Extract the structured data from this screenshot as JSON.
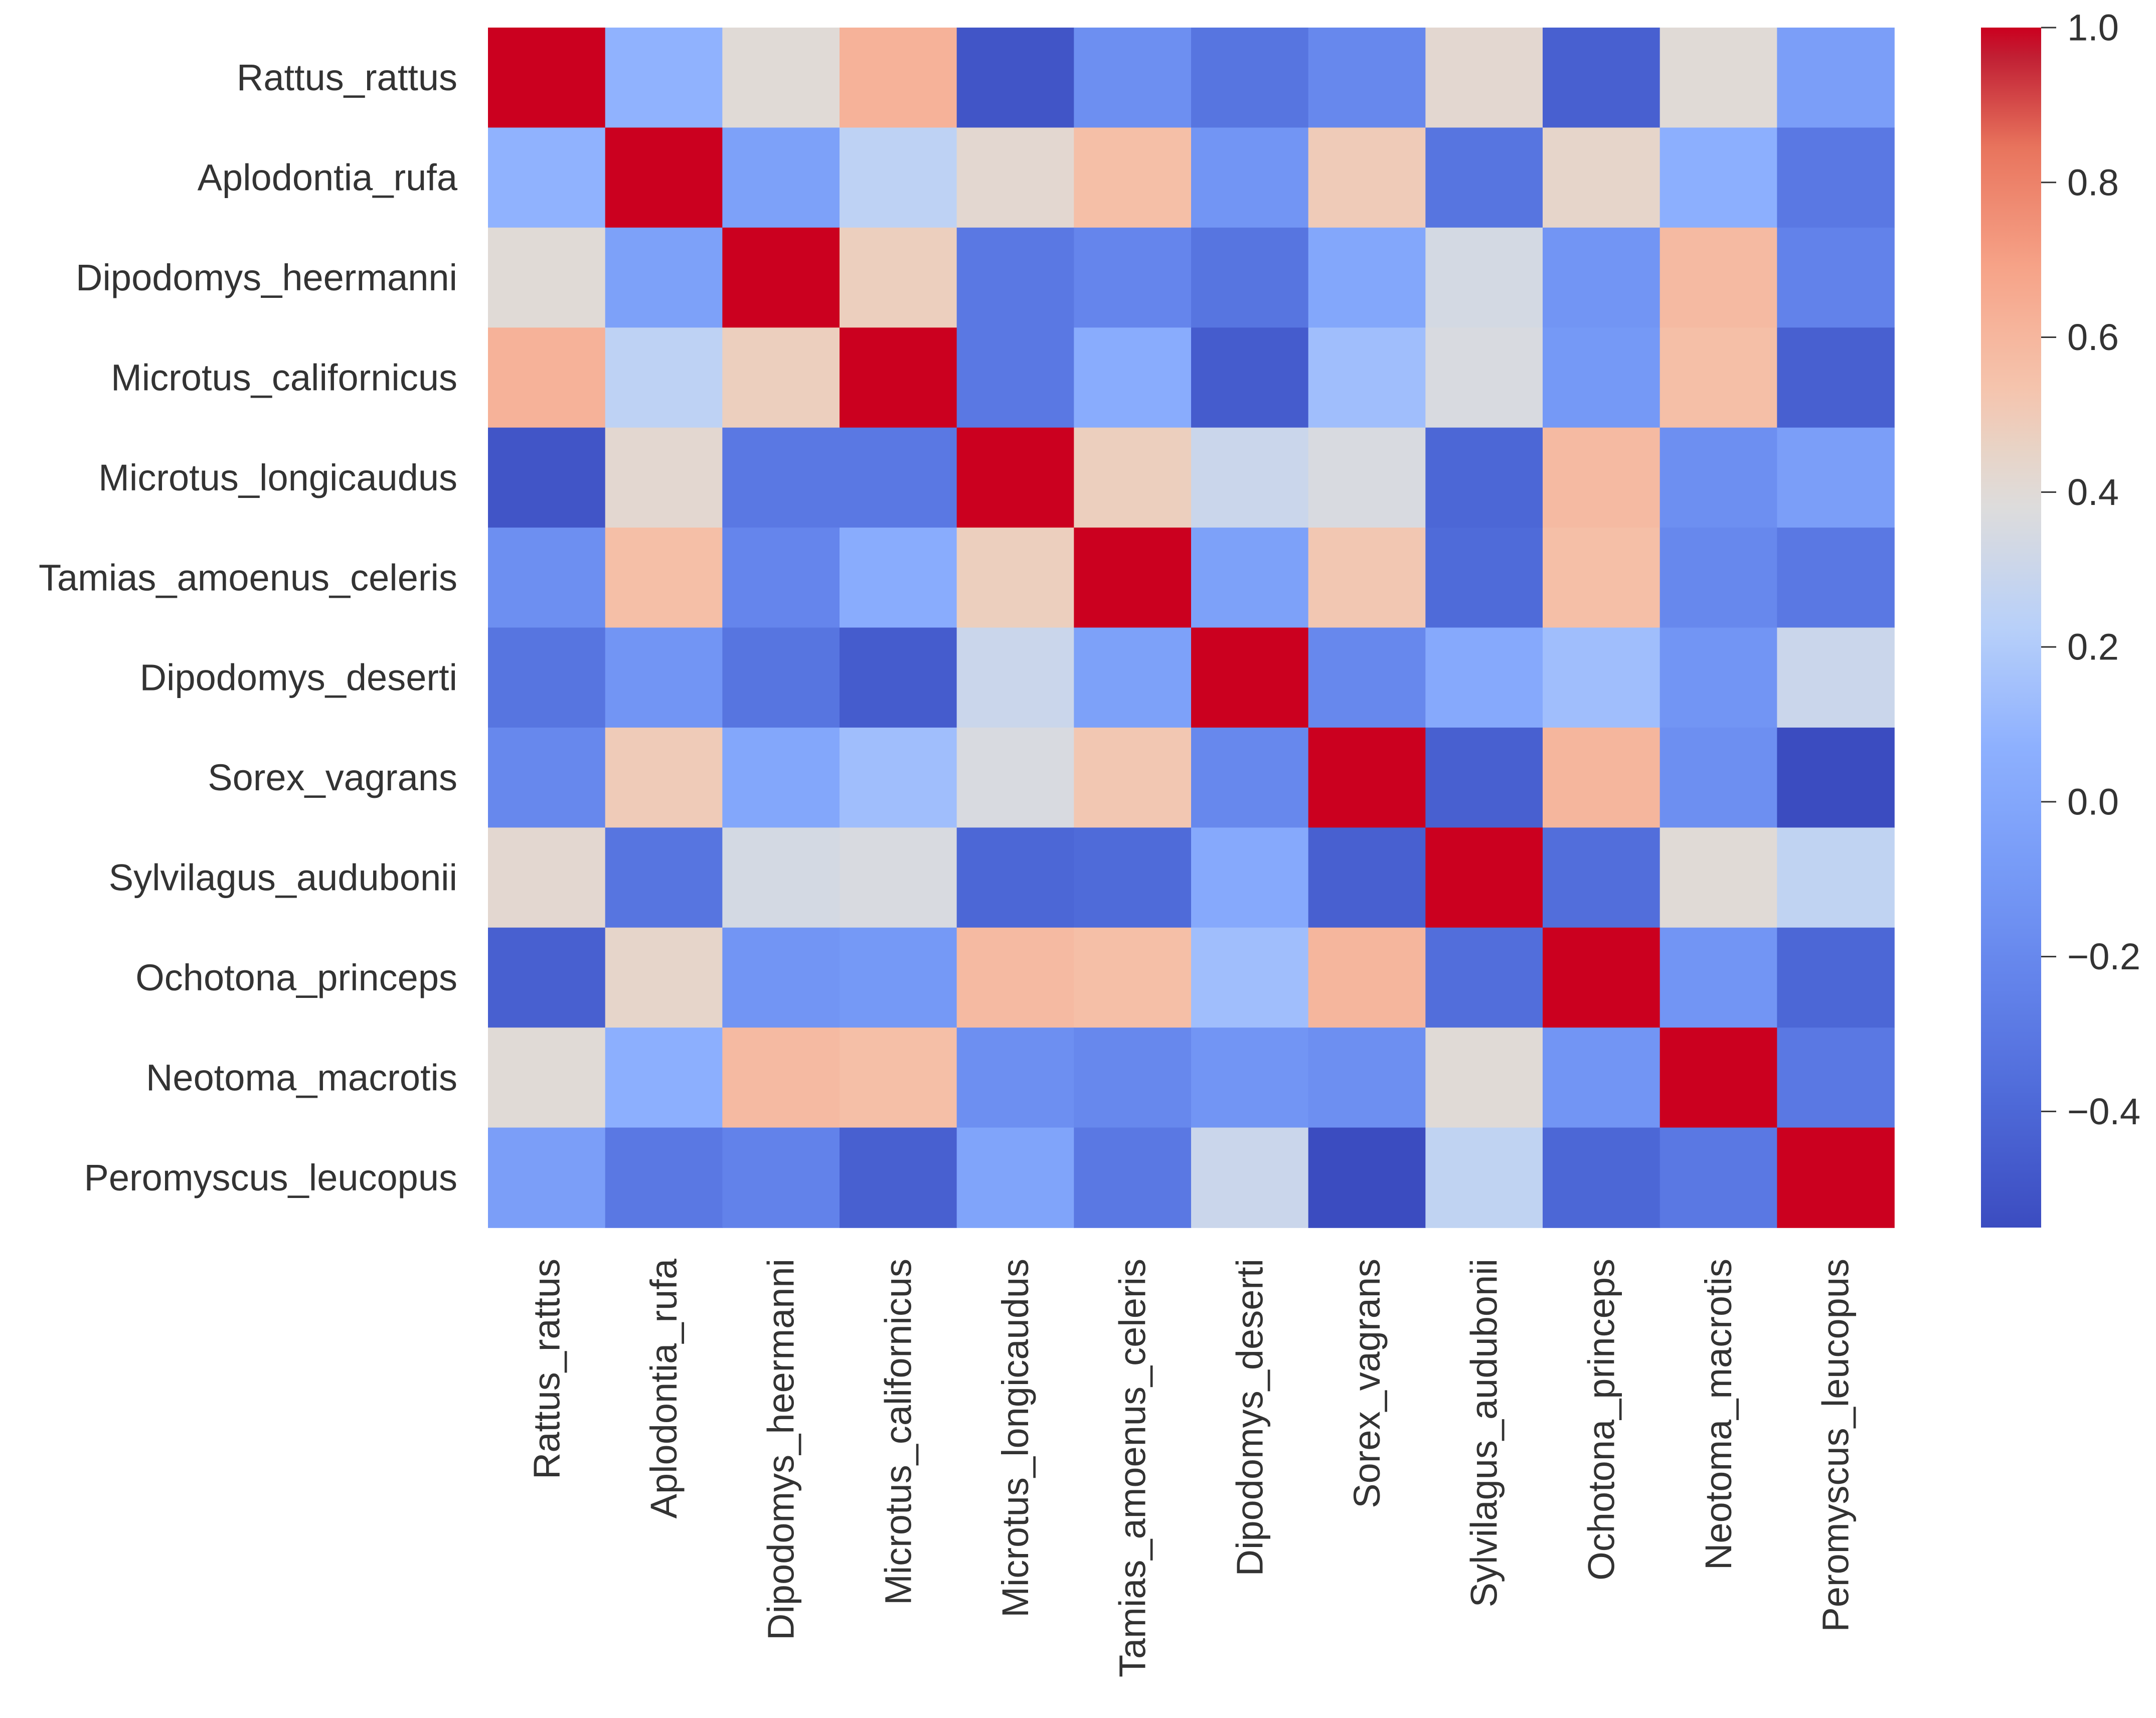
{
  "chart_data": {
    "type": "heatmap",
    "title": "",
    "xlabel": "",
    "ylabel": "",
    "colormap": "coolwarm",
    "row_labels": [
      "Rattus_rattus",
      "Aplodontia_rufa",
      "Dipodomys_heermanni",
      "Microtus_californicus",
      "Microtus_longicaudus",
      "Tamias_amoenus_celeris",
      "Dipodomys_deserti",
      "Sorex_vagrans",
      "Sylvilagus_audubonii",
      "Ochotona_princeps",
      "Neotoma_macrotis",
      "Peromyscus_leucopus"
    ],
    "col_labels": [
      "Rattus_rattus",
      "Aplodontia_rufa",
      "Dipodomys_heermanni",
      "Microtus_californicus",
      "Microtus_longicaudus",
      "Tamias_amoenus_celeris",
      "Dipodomys_deserti",
      "Sorex_vagrans",
      "Sylvilagus_audubonii",
      "Ochotona_princeps",
      "Neotoma_macrotis",
      "Peromyscus_leucopus"
    ],
    "matrix": [
      [
        1.0,
        0.08,
        0.4,
        0.62,
        -0.5,
        -0.16,
        -0.32,
        -0.2,
        0.42,
        -0.44,
        0.4,
        -0.06
      ],
      [
        0.08,
        1.0,
        -0.04,
        0.25,
        0.42,
        0.56,
        -0.12,
        0.5,
        -0.32,
        0.44,
        0.06,
        -0.3
      ],
      [
        0.4,
        -0.04,
        1.0,
        0.48,
        -0.3,
        -0.22,
        -0.32,
        0.0,
        0.34,
        -0.12,
        0.58,
        -0.24
      ],
      [
        0.62,
        0.25,
        0.48,
        1.0,
        -0.3,
        0.04,
        -0.46,
        0.14,
        0.36,
        -0.1,
        0.56,
        -0.44
      ],
      [
        -0.5,
        0.42,
        -0.3,
        -0.3,
        1.0,
        0.48,
        0.3,
        0.36,
        -0.4,
        0.58,
        -0.16,
        -0.06
      ],
      [
        -0.16,
        0.56,
        -0.22,
        0.04,
        0.48,
        1.0,
        -0.04,
        0.52,
        -0.38,
        0.56,
        -0.2,
        -0.3
      ],
      [
        -0.32,
        -0.12,
        -0.32,
        -0.46,
        0.3,
        -0.04,
        1.0,
        -0.2,
        0.02,
        0.14,
        -0.12,
        0.3
      ],
      [
        -0.2,
        0.5,
        0.0,
        0.14,
        0.36,
        0.52,
        -0.2,
        1.0,
        -0.44,
        0.6,
        -0.16,
        -0.55
      ],
      [
        0.42,
        -0.32,
        0.34,
        0.36,
        -0.4,
        -0.38,
        0.02,
        -0.44,
        1.0,
        -0.36,
        0.4,
        0.26
      ],
      [
        -0.44,
        0.44,
        -0.12,
        -0.1,
        0.58,
        0.56,
        0.14,
        0.6,
        -0.36,
        1.0,
        -0.12,
        -0.4
      ],
      [
        0.4,
        0.06,
        0.58,
        0.56,
        -0.16,
        -0.2,
        -0.12,
        -0.16,
        0.4,
        -0.12,
        1.0,
        -0.3
      ],
      [
        -0.06,
        -0.3,
        -0.24,
        -0.44,
        -0.02,
        -0.3,
        0.3,
        -0.55,
        0.26,
        -0.4,
        -0.3,
        1.0
      ]
    ],
    "colorbar": {
      "vmin": -0.55,
      "vmax": 1.0,
      "ticks": [
        1.0,
        0.8,
        0.6,
        0.4,
        0.2,
        0.0,
        -0.2,
        -0.4
      ],
      "tick_labels": [
        "1.0",
        "0.8",
        "0.6",
        "0.4",
        "0.2",
        "0.0",
        "−0.2",
        "−0.4"
      ]
    }
  }
}
